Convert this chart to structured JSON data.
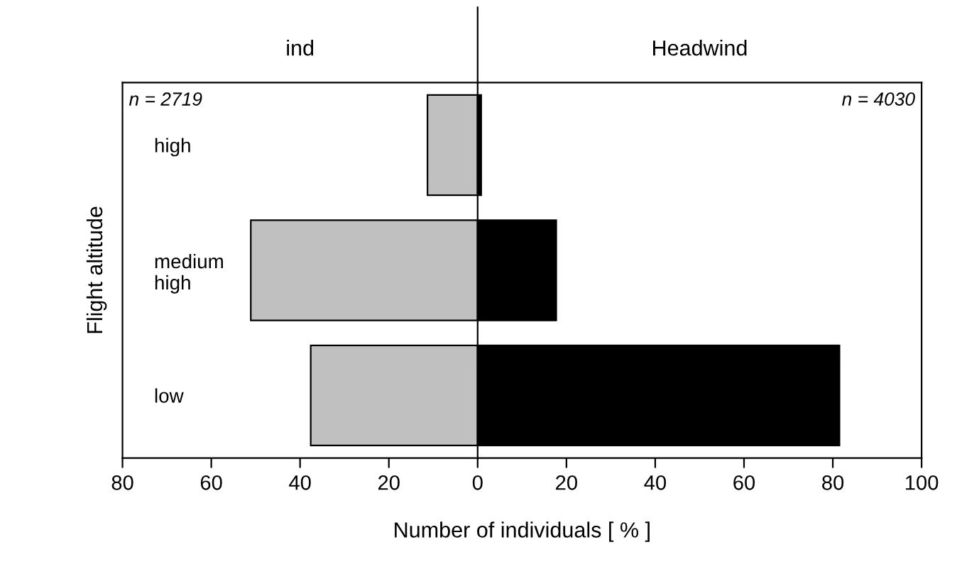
{
  "chart_data": {
    "type": "bar",
    "orientation": "horizontal",
    "xlabel": "Number of individuals [ % ]",
    "ylabel": "Flight altitude",
    "categories": [
      "high",
      "medium\nhigh",
      "low"
    ],
    "series": [
      {
        "color": "#c0c0c0",
        "values": [
          -11.3,
          -51.1,
          -37.6
        ]
      },
      {
        "color": "#000000",
        "values": [
          0.8,
          17.7,
          81.5
        ]
      }
    ],
    "xlim": [
      -80,
      100
    ],
    "xticks": [
      {
        "value": -80,
        "label": "80"
      },
      {
        "value": -60,
        "label": "60"
      },
      {
        "value": -40,
        "label": "40"
      },
      {
        "value": -20,
        "label": "20"
      },
      0,
      20,
      40,
      60,
      80,
      100
    ],
    "ref_lines": [
      {
        "axis": "x",
        "value": 0,
        "color": "#000000"
      }
    ],
    "annotations": [
      "ind",
      "Headwind",
      "n = 2719",
      "n = 4030"
    ],
    "stacked": true,
    "grid": false,
    "legend": false
  }
}
